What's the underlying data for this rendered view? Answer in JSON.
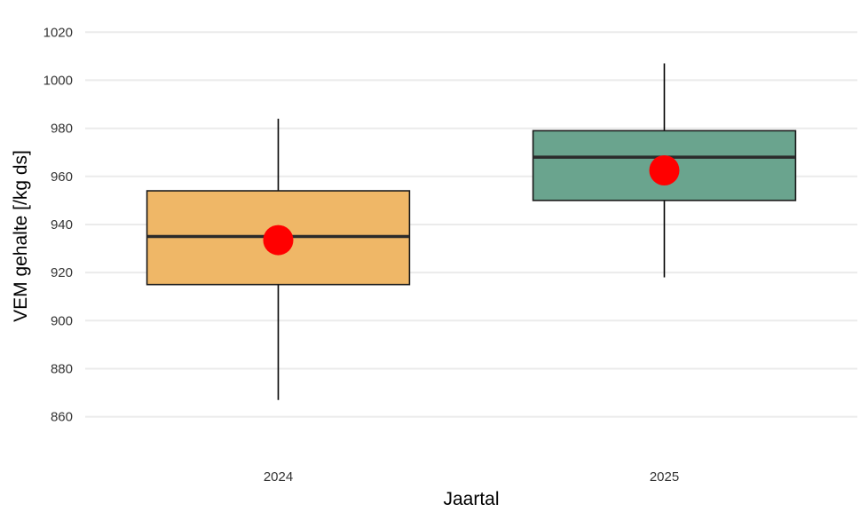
{
  "chart_data": {
    "type": "boxplot",
    "xlabel": "Jaartal",
    "ylabel": "VEM gehalte [/kg ds]",
    "ylim": [
      844,
      1026
    ],
    "yticks": [
      860,
      880,
      900,
      920,
      940,
      960,
      980,
      1000,
      1020
    ],
    "categories": [
      "2024",
      "2025"
    ],
    "grid": "horizontal",
    "boxes": [
      {
        "category": "2024",
        "whisker_low": 867,
        "q1": 915,
        "median": 935,
        "q3": 954,
        "whisker_high": 984,
        "mean": 933.5,
        "color": "#efb767"
      },
      {
        "category": "2025",
        "whisker_low": 918,
        "q1": 950,
        "median": 968,
        "q3": 979,
        "whisker_high": 1007,
        "mean": 962.5,
        "color": "#6aa48e"
      }
    ],
    "mean_color": "#ff0000"
  }
}
